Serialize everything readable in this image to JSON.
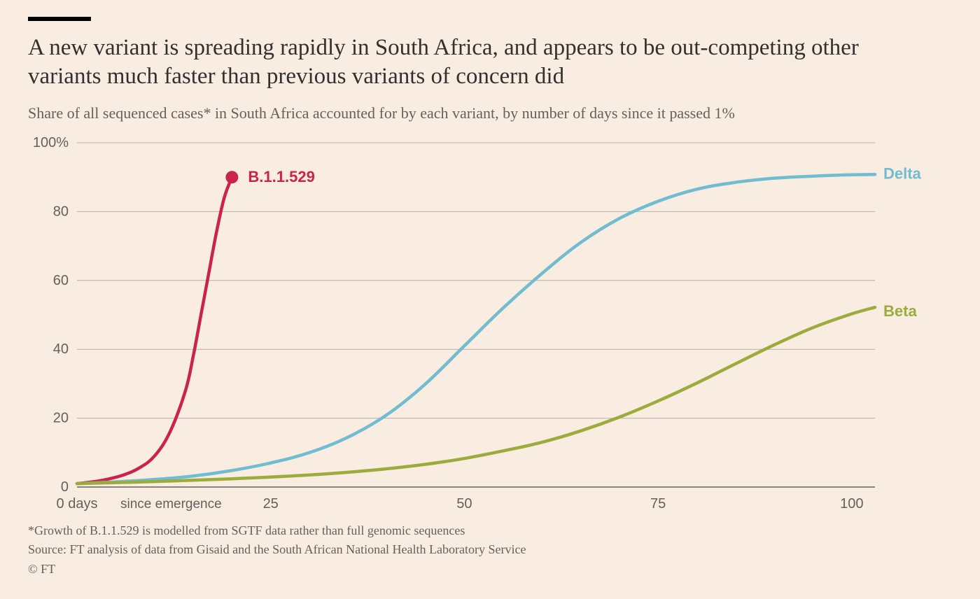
{
  "title": "A new variant is spreading rapidly in South Africa, and appears to be out-competing other variants much faster than previous variants of concern did",
  "subtitle": "Share of all sequenced cases* in South Africa accounted for by each variant,\nby number of days since it passed 1%",
  "footnote1": "*Growth of B.1.1.529 is modelled from SGTF data rather than full genomic sequences",
  "footnote2": "Source: FT analysis of data from Gisaid and the South African National Health Laboratory Service",
  "footnote3": "© FT",
  "colors": {
    "background": "#f9ece1",
    "text_primary": "#33302e",
    "text_secondary": "#66605c",
    "gridline": "#b8b0a8",
    "zero_line": "#66605c",
    "bar_black": "#000000"
  },
  "chart": {
    "type": "line",
    "xlim": [
      0,
      103
    ],
    "ylim": [
      0,
      100
    ],
    "xticks": [
      0,
      25,
      50,
      75,
      100
    ],
    "xtick_labels": [
      "0 days",
      "25",
      "50",
      "75",
      "100"
    ],
    "x_axis_note": "since emergence",
    "yticks": [
      0,
      20,
      40,
      60,
      80,
      100
    ],
    "ytick_labels": [
      "0",
      "20",
      "40",
      "60",
      "80",
      "100%"
    ],
    "line_width": 4.5,
    "marker_radius": 9,
    "series": [
      {
        "name": "B.1.1.529",
        "label": "B.1.1.529",
        "color": "#c9254b",
        "label_x": 21,
        "label_y": 90,
        "end_marker": true,
        "points": [
          [
            0,
            1
          ],
          [
            2,
            1.5
          ],
          [
            4,
            2.3
          ],
          [
            6,
            3.5
          ],
          [
            8,
            5.5
          ],
          [
            10,
            9
          ],
          [
            12,
            16
          ],
          [
            14,
            28
          ],
          [
            15,
            38
          ],
          [
            16,
            50
          ],
          [
            17,
            62
          ],
          [
            18,
            74
          ],
          [
            19,
            84
          ],
          [
            20,
            90
          ]
        ]
      },
      {
        "name": "Delta",
        "label": "Delta",
        "color": "#70bcd1",
        "label_x": 103,
        "label_y": 91,
        "end_marker": false,
        "points": [
          [
            0,
            1
          ],
          [
            5,
            1.5
          ],
          [
            10,
            2.2
          ],
          [
            15,
            3.2
          ],
          [
            20,
            4.8
          ],
          [
            25,
            7
          ],
          [
            30,
            10
          ],
          [
            35,
            14.5
          ],
          [
            40,
            21
          ],
          [
            45,
            30
          ],
          [
            50,
            41
          ],
          [
            55,
            52
          ],
          [
            60,
            62
          ],
          [
            65,
            71
          ],
          [
            70,
            78
          ],
          [
            75,
            83
          ],
          [
            80,
            86.5
          ],
          [
            85,
            88.5
          ],
          [
            90,
            89.7
          ],
          [
            95,
            90.3
          ],
          [
            100,
            90.7
          ],
          [
            103,
            90.8
          ]
        ]
      },
      {
        "name": "Beta",
        "label": "Beta",
        "color": "#9cac3c",
        "label_x": 103,
        "label_y": 51,
        "end_marker": false,
        "points": [
          [
            0,
            1
          ],
          [
            10,
            1.6
          ],
          [
            20,
            2.4
          ],
          [
            25,
            2.9
          ],
          [
            30,
            3.5
          ],
          [
            35,
            4.3
          ],
          [
            40,
            5.3
          ],
          [
            45,
            6.6
          ],
          [
            50,
            8.3
          ],
          [
            55,
            10.5
          ],
          [
            60,
            13
          ],
          [
            65,
            16.3
          ],
          [
            70,
            20.3
          ],
          [
            75,
            25
          ],
          [
            80,
            30.2
          ],
          [
            85,
            35.8
          ],
          [
            90,
            41.3
          ],
          [
            95,
            46.3
          ],
          [
            100,
            50.3
          ],
          [
            103,
            52.2
          ]
        ]
      }
    ]
  }
}
